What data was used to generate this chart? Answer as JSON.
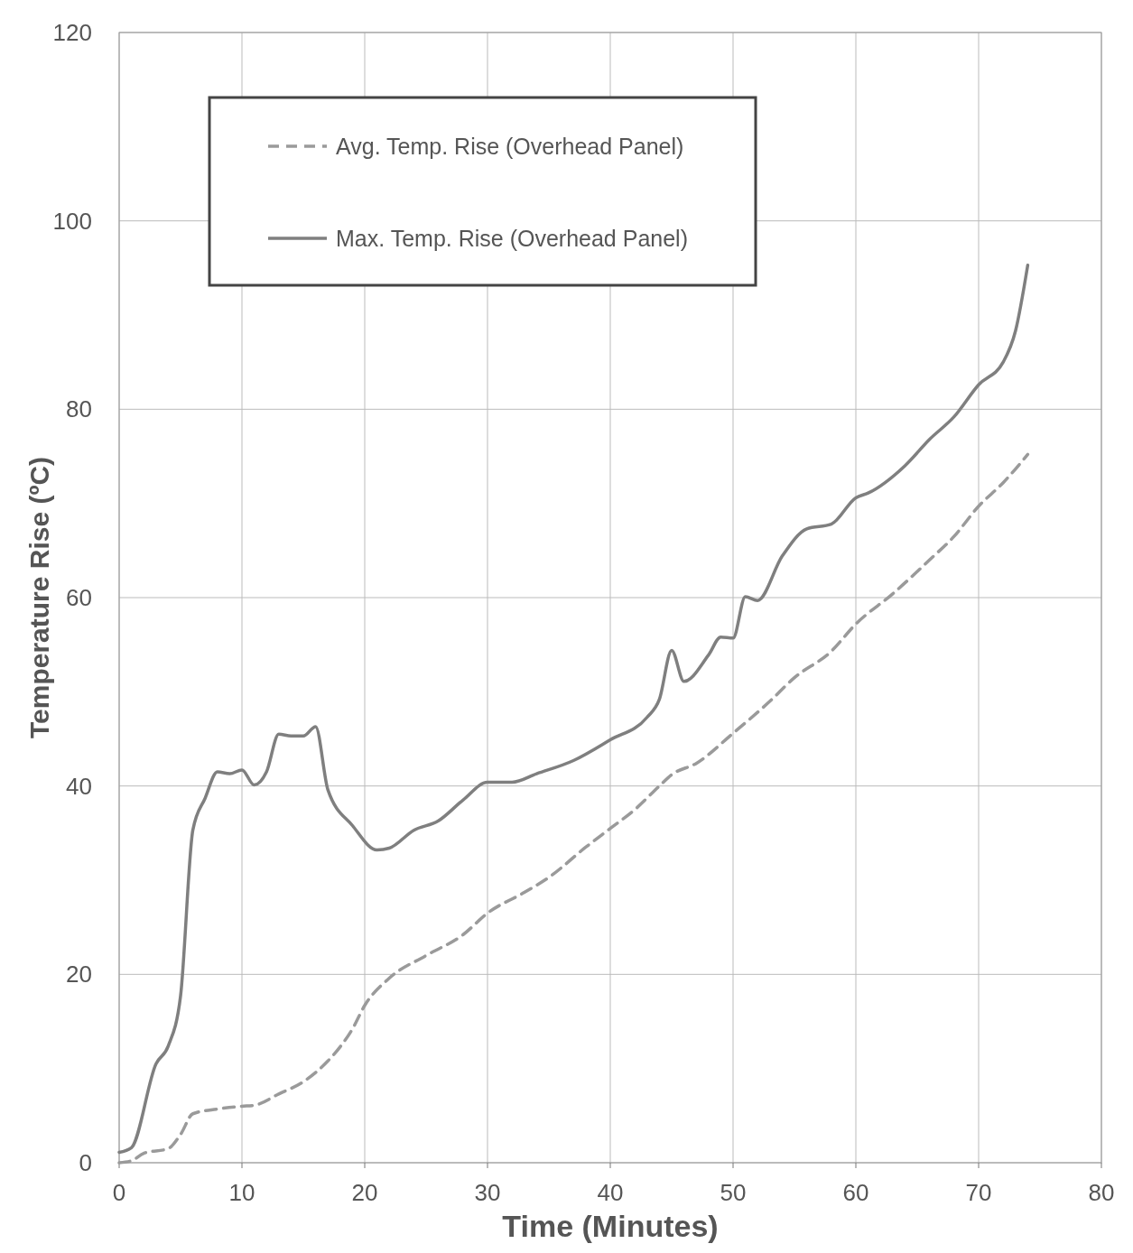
{
  "chart_data": {
    "type": "line",
    "xlabel": "Time (Minutes)",
    "ylabel": "Temperature Rise (ºC)",
    "xlim": [
      0,
      80
    ],
    "xticks": [
      0,
      10,
      20,
      30,
      40,
      50,
      60,
      70,
      80
    ],
    "ylim": [
      0,
      120
    ],
    "yticks": [
      0,
      20,
      40,
      60,
      80,
      100,
      120
    ],
    "grid": true,
    "legend": "top left",
    "marker": "none",
    "series": [
      {
        "name": "Avg. Temp. Rise (Overhead Panel)",
        "color": "#9a9a9a",
        "line_style": "dashed",
        "x": [
          0,
          1,
          2,
          4,
          5,
          6,
          8,
          10,
          11,
          13,
          15,
          17,
          18,
          19,
          20,
          22,
          25,
          28,
          30,
          33,
          35,
          38,
          40,
          42,
          44,
          45,
          47,
          50,
          53,
          55,
          58,
          60,
          63,
          66,
          68,
          70,
          72,
          74
        ],
        "values": [
          0,
          0.2,
          1,
          1.5,
          3,
          5.2,
          5.7,
          6,
          6.1,
          7.3,
          8.6,
          10.8,
          12.3,
          14.2,
          16.7,
          19.6,
          22,
          24.2,
          26.5,
          28.7,
          30.3,
          33.5,
          35.5,
          37.5,
          40,
          41.2,
          42.4,
          45.6,
          49,
          51.5,
          54.3,
          57.2,
          60.4,
          64,
          66.5,
          69.7,
          72.2,
          75.2
        ]
      },
      {
        "name": "Max. Temp. Rise (Overhead Panel)",
        "color": "#7f7f7f",
        "line_style": "solid",
        "x": [
          0,
          1,
          3,
          4,
          5,
          6,
          7,
          8,
          9,
          10,
          11,
          12,
          13,
          14,
          15,
          16,
          17,
          19,
          21,
          22,
          24,
          26,
          28,
          30,
          32,
          34,
          37,
          40,
          43,
          44,
          45,
          46,
          48,
          49,
          50,
          51,
          52,
          54,
          56,
          58,
          60,
          61,
          64,
          66,
          68,
          70,
          72,
          73,
          74
        ],
        "values": [
          1.1,
          1.6,
          10.5,
          12.4,
          17.7,
          35.3,
          38.7,
          41.5,
          41.3,
          41.7,
          40.1,
          41.5,
          45.5,
          45.3,
          45.3,
          46.3,
          39.6,
          35.8,
          33.2,
          33.4,
          35.3,
          36.3,
          38.5,
          40.4,
          40.4,
          41.3,
          42.7,
          44.9,
          47.3,
          49.2,
          54.4,
          51.1,
          53.9,
          55.8,
          55.7,
          60.1,
          59.7,
          64.4,
          67.3,
          67.8,
          70.6,
          71.1,
          74,
          76.8,
          79.2,
          82.6,
          85,
          88.3,
          95.3
        ]
      }
    ]
  }
}
